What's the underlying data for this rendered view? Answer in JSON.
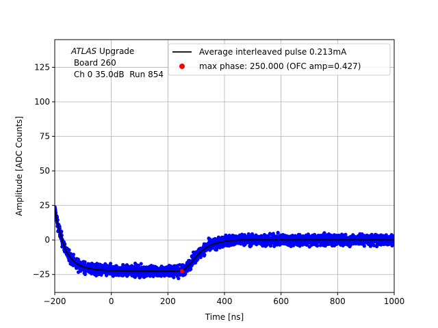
{
  "chart_data": {
    "type": "scatter",
    "title": "",
    "xlabel": "Time [ns]",
    "ylabel": "Amplitude [ADC Counts]",
    "xlim": [
      -200,
      1000
    ],
    "ylim": [
      -38,
      145
    ],
    "xticks": [
      -200,
      0,
      200,
      400,
      600,
      800,
      1000
    ],
    "xtick_labels": [
      "−200",
      "0",
      "200",
      "400",
      "600",
      "800",
      "1000"
    ],
    "yticks": [
      -25,
      0,
      25,
      50,
      75,
      100,
      125
    ],
    "ytick_labels": [
      "−25",
      "0",
      "25",
      "50",
      "75",
      "100",
      "125"
    ],
    "grid": true,
    "legend_position": "top-right",
    "annotation": {
      "line1_italic": "ATLAS",
      "line1_rest": " Upgrade",
      "line2": " Board 260",
      "line3": " Ch 0 35.0dB  Run 854"
    },
    "series": [
      {
        "name": "Average interleaved pulse 0.213mA",
        "kind": "line",
        "color": "#000000",
        "x": [
          -200,
          -190,
          -180,
          -170,
          -160,
          -150,
          -140,
          -130,
          -120,
          -110,
          -100,
          -80,
          -60,
          -40,
          -20,
          0,
          50,
          100,
          150,
          200,
          240,
          250,
          260,
          280,
          300,
          320,
          340,
          360,
          380,
          400,
          420,
          440,
          460,
          480,
          500,
          600,
          700,
          800,
          900,
          1000
        ],
        "y": [
          22,
          12,
          4,
          -3,
          -8,
          -11.5,
          -14,
          -16,
          -17.5,
          -18.5,
          -19.5,
          -20.5,
          -21.3,
          -21.8,
          -22,
          -22.2,
          -22.4,
          -22.5,
          -22.6,
          -22.6,
          -22.6,
          -22.5,
          -21,
          -17,
          -12,
          -8,
          -5,
          -3,
          -2,
          -1,
          -0.5,
          -0.2,
          0,
          0,
          0,
          0,
          0,
          0,
          0,
          0
        ]
      },
      {
        "name": "max phase: 250.000 (OFC amp=0.427)",
        "kind": "marker",
        "color": "#ff0000",
        "x": [
          250
        ],
        "y": [
          -22.6
        ]
      },
      {
        "name": "",
        "kind": "scatter-band",
        "color": "#0000ff",
        "noise_halfwidth": 5
      }
    ]
  }
}
